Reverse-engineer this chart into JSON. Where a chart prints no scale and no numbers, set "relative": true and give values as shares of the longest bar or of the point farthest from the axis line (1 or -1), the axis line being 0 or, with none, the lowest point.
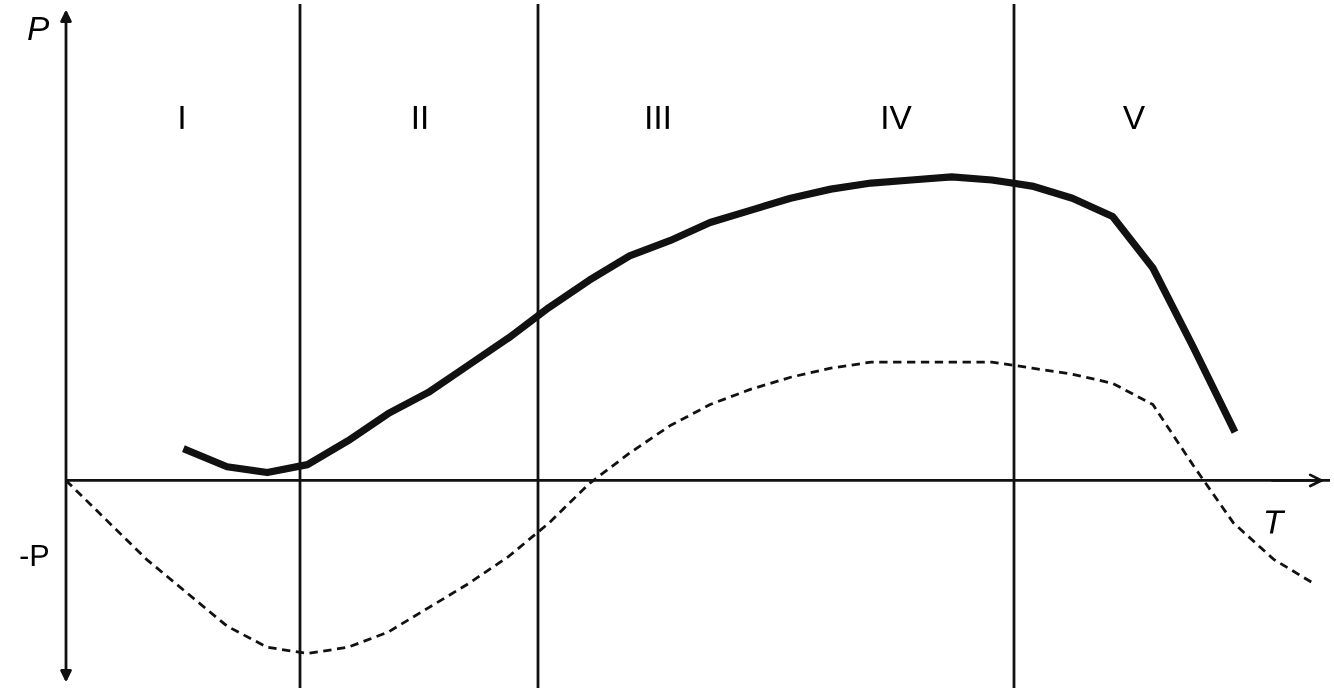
{
  "chart_data": {
    "type": "line",
    "relative": true,
    "ylabel": "P",
    "xlabel": "T",
    "categories": [
      null,
      null,
      null,
      null,
      null,
      null,
      null,
      null,
      null,
      null,
      null,
      null,
      null,
      null,
      null,
      null,
      null,
      null,
      null,
      null,
      null,
      null,
      null,
      null,
      null,
      null,
      null,
      null,
      null,
      null,
      null,
      null
    ],
    "series": [
      {
        "color": "#111111",
        "line_style": "solid",
        "values": [
          null,
          null,
          null,
          0.1,
          0.045,
          0.026,
          0.052,
          0.13,
          0.22,
          0.29,
          0.38,
          0.47,
          0.57,
          0.66,
          0.74,
          0.79,
          0.85,
          0.89,
          0.93,
          0.96,
          0.98,
          0.99,
          1.0,
          0.99,
          0.97,
          0.93,
          0.87,
          0.7,
          0.44,
          0.17,
          null,
          null
        ]
      },
      {
        "color": "#111111",
        "line_style": "dashed",
        "values": [
          0,
          -0.13,
          -0.26,
          -0.37,
          -0.48,
          -0.55,
          -0.57,
          -0.55,
          -0.5,
          -0.42,
          -0.34,
          -0.25,
          -0.14,
          -0.01,
          0.09,
          0.18,
          0.25,
          0.3,
          0.34,
          0.37,
          0.39,
          0.39,
          0.39,
          0.39,
          0.37,
          0.35,
          0.32,
          0.25,
          0.05,
          -0.14,
          -0.26,
          -0.34
        ]
      }
    ],
    "annotations": [
      "-P",
      "I",
      "II",
      "III",
      "IV",
      "V"
    ],
    "legend": false
  }
}
